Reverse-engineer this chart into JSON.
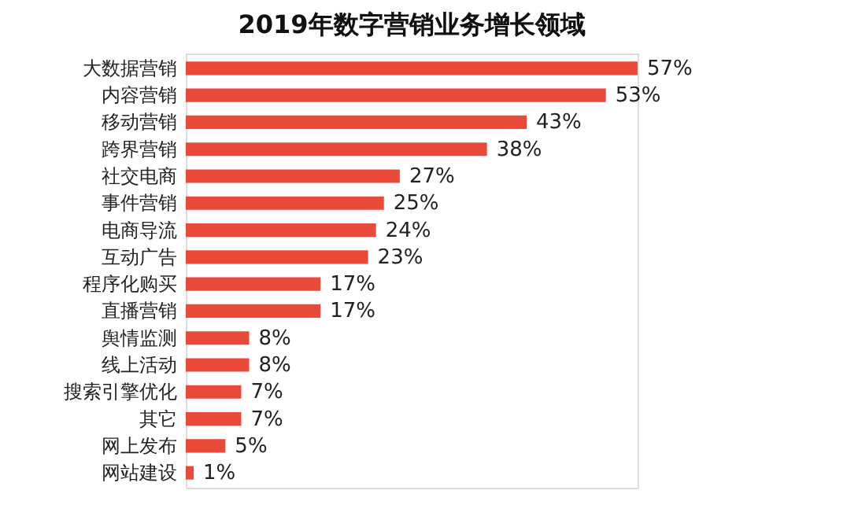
{
  "chart_data": {
    "type": "bar",
    "orientation": "horizontal",
    "title": "2019年数字营销业务增长领域",
    "categories": [
      "大数据营销",
      "内容营销",
      "移动营销",
      "跨界营销",
      "社交电商",
      "事件营销",
      "电商导流",
      "互动广告",
      "程序化购买",
      "直播营销",
      "舆情监测",
      "线上活动",
      "搜索引擎优化",
      "其它",
      "网上发布",
      "网站建设"
    ],
    "values": [
      57,
      53,
      43,
      38,
      27,
      25,
      24,
      23,
      17,
      17,
      8,
      8,
      7,
      7,
      5,
      1
    ],
    "value_labels": [
      "57%",
      "53%",
      "43%",
      "38%",
      "27%",
      "25%",
      "24%",
      "23%",
      "17%",
      "17%",
      "8%",
      "8%",
      "7%",
      "7%",
      "5%",
      "1%"
    ],
    "color": "#ea4a3a"
  }
}
